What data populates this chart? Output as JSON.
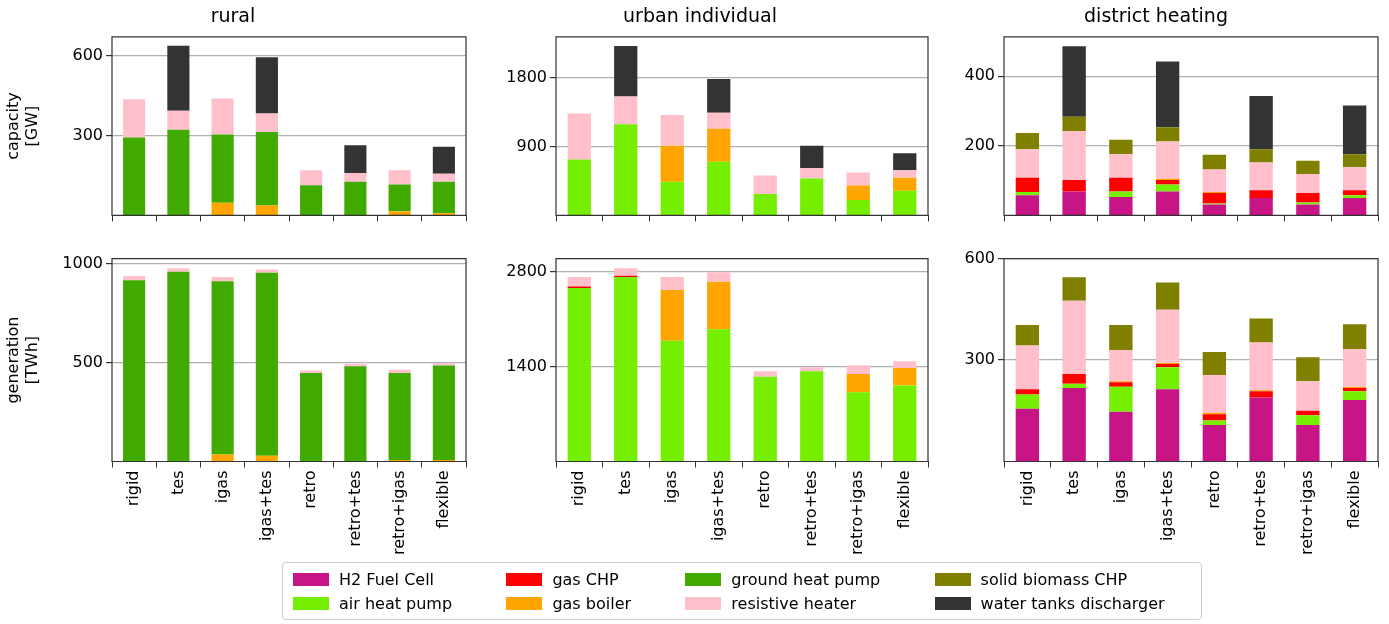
{
  "chart_data": [
    {
      "type": "bar",
      "stacked": true,
      "title": "rural",
      "ylabel": "capacity\n[GW]",
      "categories": [
        "rigid",
        "tes",
        "igas",
        "igas+tes",
        "retro",
        "retro+tes",
        "retro+igas",
        "flexible"
      ],
      "ylim": [
        0,
        672
      ],
      "yticks": [
        300,
        600
      ],
      "grid": "y",
      "legend": "bottom",
      "tick_labels": "y",
      "series": [
        {
          "name": "gas boiler",
          "color": "#ffa500",
          "values": [
            0,
            0,
            48,
            37,
            0,
            0,
            16,
            8
          ]
        },
        {
          "name": "ground heat pump",
          "color": "#40aa00",
          "values": [
            293,
            322,
            256,
            277,
            113,
            127,
            100,
            119
          ]
        },
        {
          "name": "resistive heater",
          "color": "#ffc0cb",
          "values": [
            144,
            72,
            136,
            69,
            57,
            33,
            54,
            30
          ]
        },
        {
          "name": "water tanks discharger",
          "color": "#333333",
          "values": [
            0,
            244,
            0,
            212,
            0,
            104,
            0,
            101
          ]
        }
      ]
    },
    {
      "type": "bar",
      "stacked": true,
      "title": "urban individual",
      "categories": [
        "rigid",
        "tes",
        "igas",
        "igas+tes",
        "retro",
        "retro+tes",
        "retro+igas",
        "flexible"
      ],
      "ylim": [
        0,
        2330
      ],
      "yticks": [
        900,
        1800
      ],
      "grid": "y",
      "legend": "bottom",
      "tick_labels": "y",
      "series": [
        {
          "name": "air heat pump",
          "color": "#76ee00",
          "values": [
            730,
            1190,
            440,
            700,
            280,
            480,
            200,
            320
          ]
        },
        {
          "name": "gas boiler",
          "color": "#ffa500",
          "values": [
            0,
            0,
            470,
            430,
            0,
            0,
            190,
            170
          ]
        },
        {
          "name": "resistive heater",
          "color": "#ffc0cb",
          "values": [
            600,
            360,
            400,
            210,
            240,
            140,
            170,
            100
          ]
        },
        {
          "name": "water tanks discharger",
          "color": "#333333",
          "values": [
            0,
            660,
            0,
            440,
            0,
            290,
            0,
            220
          ]
        }
      ]
    },
    {
      "type": "bar",
      "stacked": true,
      "title": "district heating",
      "categories": [
        "rigid",
        "tes",
        "igas",
        "igas+tes",
        "retro",
        "retro+tes",
        "retro+igas",
        "flexible"
      ],
      "ylim": [
        0,
        513
      ],
      "yticks": [
        200,
        400
      ],
      "grid": "y",
      "legend": "bottom",
      "tick_labels": "y",
      "series": [
        {
          "name": "H2 Fuel Cell",
          "color": "#c71585",
          "values": [
            58,
            69,
            53,
            69,
            31,
            50,
            31,
            50
          ]
        },
        {
          "name": "air heat pump",
          "color": "#76ee00",
          "values": [
            9,
            0,
            16,
            20,
            3,
            0,
            6,
            8
          ]
        },
        {
          "name": "gas CHP",
          "color": "#ff0000",
          "values": [
            41,
            33,
            39,
            13,
            30,
            22,
            27,
            14
          ]
        },
        {
          "name": "gas boiler",
          "color": "#ffa500",
          "values": [
            0,
            0,
            0,
            3,
            3,
            0,
            0,
            0
          ]
        },
        {
          "name": "resistive heater",
          "color": "#ffc0cb",
          "values": [
            82,
            140,
            68,
            107,
            65,
            80,
            55,
            66
          ]
        },
        {
          "name": "solid biomass CHP",
          "color": "#808000",
          "values": [
            47,
            41,
            41,
            41,
            42,
            38,
            38,
            38
          ]
        },
        {
          "name": "water tanks discharger",
          "color": "#333333",
          "values": [
            0,
            203,
            0,
            189,
            0,
            153,
            0,
            140
          ]
        }
      ]
    },
    {
      "type": "bar",
      "stacked": true,
      "ylabel": "generation\n[TWh]",
      "categories": [
        "rigid",
        "tes",
        "igas",
        "igas+tes",
        "retro",
        "retro+tes",
        "retro+igas",
        "flexible"
      ],
      "ylim": [
        0,
        1027
      ],
      "yticks": [
        500,
        1000
      ],
      "grid": "y",
      "legend": "bottom",
      "series": [
        {
          "name": "gas boiler",
          "color": "#ffa500",
          "values": [
            0,
            0,
            35,
            29,
            0,
            0,
            7,
            8
          ]
        },
        {
          "name": "ground heat pump",
          "color": "#40aa00",
          "values": [
            917,
            961,
            877,
            927,
            448,
            482,
            441,
            478
          ]
        },
        {
          "name": "resistive heater",
          "color": "#ffc0cb",
          "values": [
            22,
            17,
            22,
            16,
            12,
            11,
            17,
            11
          ]
        }
      ]
    },
    {
      "type": "bar",
      "stacked": true,
      "categories": [
        "rigid",
        "tes",
        "igas",
        "igas+tes",
        "retro",
        "retro+tes",
        "retro+igas",
        "flexible"
      ],
      "ylim": [
        0,
        2992
      ],
      "yticks": [
        1400,
        2800
      ],
      "grid": "y",
      "legend": "bottom",
      "series": [
        {
          "name": "air heat pump",
          "color": "#76ee00",
          "values": [
            2560,
            2720,
            1780,
            1950,
            1250,
            1330,
            1020,
            1120
          ]
        },
        {
          "name": "gas CHP",
          "color": "#ff0000",
          "values": [
            20,
            20,
            0,
            0,
            0,
            0,
            0,
            0
          ]
        },
        {
          "name": "gas boiler",
          "color": "#ffa500",
          "values": [
            0,
            0,
            750,
            700,
            0,
            0,
            270,
            260
          ]
        },
        {
          "name": "resistive heater",
          "color": "#ffc0cb",
          "values": [
            140,
            110,
            190,
            140,
            80,
            60,
            130,
            100
          ]
        }
      ]
    },
    {
      "type": "bar",
      "stacked": true,
      "categories": [
        "rigid",
        "tes",
        "igas",
        "igas+tes",
        "retro",
        "retro+tes",
        "retro+igas",
        "flexible"
      ],
      "ylim": [
        0,
        600
      ],
      "yticks": [
        300,
        600
      ],
      "grid": "y",
      "legend": "bottom",
      "series": [
        {
          "name": "H2 Fuel Cell",
          "color": "#c71585",
          "values": [
            156,
            217,
            147,
            214,
            108,
            189,
            108,
            182
          ]
        },
        {
          "name": "air heat pump",
          "color": "#76ee00",
          "values": [
            42,
            13,
            74,
            65,
            13,
            0,
            29,
            26
          ]
        },
        {
          "name": "gas CHP",
          "color": "#ff0000",
          "values": [
            16,
            29,
            13,
            9,
            19,
            19,
            13,
            9
          ]
        },
        {
          "name": "gas boiler",
          "color": "#ffa500",
          "values": [
            0,
            0,
            3,
            3,
            4,
            3,
            0,
            3
          ]
        },
        {
          "name": "resistive heater",
          "color": "#ffc0cb",
          "values": [
            129,
            216,
            93,
            158,
            112,
            141,
            87,
            112
          ]
        },
        {
          "name": "solid biomass CHP",
          "color": "#808000",
          "values": [
            61,
            70,
            74,
            80,
            68,
            71,
            71,
            74
          ]
        }
      ]
    }
  ]
}
